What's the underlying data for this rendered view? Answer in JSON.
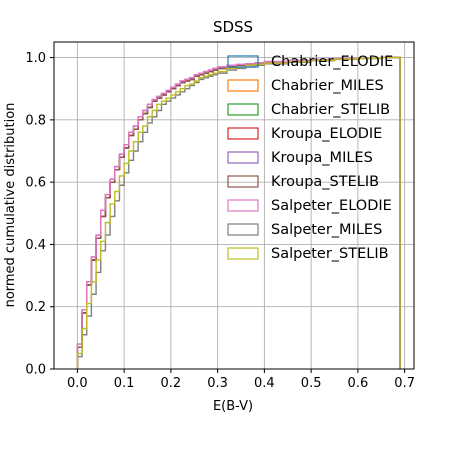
{
  "chart_data": {
    "type": "line",
    "subtype": "cumulative-step-histogram",
    "title": "SDSS",
    "xlabel": "E(B-V)",
    "ylabel": "normed cumulative distribution",
    "xlim": [
      -0.05,
      0.72
    ],
    "ylim": [
      0.0,
      1.05
    ],
    "xticks": [
      0.0,
      0.1,
      0.2,
      0.3,
      0.4,
      0.5,
      0.6,
      0.7
    ],
    "xtick_labels": [
      "0.0",
      "0.1",
      "0.2",
      "0.3",
      "0.4",
      "0.5",
      "0.6",
      "0.7"
    ],
    "yticks": [
      0.0,
      0.2,
      0.4,
      0.6,
      0.8,
      1.0
    ],
    "ytick_labels": [
      "0.0",
      "0.2",
      "0.4",
      "0.6",
      "0.8",
      "1.0"
    ],
    "grid": true,
    "legend_position": "top-right",
    "bin_edges": [
      0.0,
      0.01,
      0.02,
      0.03,
      0.04,
      0.05,
      0.06,
      0.07,
      0.08,
      0.09,
      0.1,
      0.11,
      0.12,
      0.13,
      0.14,
      0.15,
      0.16,
      0.17,
      0.18,
      0.19,
      0.2,
      0.21,
      0.22,
      0.23,
      0.24,
      0.25,
      0.26,
      0.27,
      0.28,
      0.29,
      0.3,
      0.32,
      0.34,
      0.36,
      0.38,
      0.4,
      0.45,
      0.5,
      0.55,
      0.6,
      0.65,
      0.69
    ],
    "series": [
      {
        "name": "Chabrier_ELODIE",
        "color": "#1f77b4",
        "values": [
          0.07,
          0.18,
          0.27,
          0.35,
          0.42,
          0.49,
          0.55,
          0.6,
          0.64,
          0.68,
          0.71,
          0.75,
          0.77,
          0.8,
          0.82,
          0.84,
          0.86,
          0.87,
          0.88,
          0.89,
          0.9,
          0.91,
          0.92,
          0.925,
          0.93,
          0.94,
          0.945,
          0.95,
          0.955,
          0.96,
          0.965,
          0.97,
          0.975,
          0.978,
          0.98,
          0.985,
          0.99,
          0.993,
          0.996,
          0.998,
          1.0
        ]
      },
      {
        "name": "Chabrier_MILES",
        "color": "#ff7f0e",
        "values": [
          0.07,
          0.18,
          0.27,
          0.35,
          0.42,
          0.49,
          0.55,
          0.6,
          0.64,
          0.68,
          0.71,
          0.75,
          0.77,
          0.8,
          0.82,
          0.84,
          0.86,
          0.87,
          0.88,
          0.89,
          0.9,
          0.91,
          0.92,
          0.925,
          0.93,
          0.94,
          0.945,
          0.95,
          0.955,
          0.96,
          0.965,
          0.97,
          0.975,
          0.978,
          0.98,
          0.985,
          0.99,
          0.993,
          0.996,
          0.998,
          1.0
        ]
      },
      {
        "name": "Chabrier_STELIB",
        "color": "#2ca02c",
        "values": [
          0.07,
          0.18,
          0.27,
          0.35,
          0.42,
          0.49,
          0.55,
          0.6,
          0.64,
          0.68,
          0.71,
          0.75,
          0.77,
          0.8,
          0.82,
          0.84,
          0.86,
          0.87,
          0.88,
          0.89,
          0.9,
          0.91,
          0.92,
          0.925,
          0.93,
          0.94,
          0.945,
          0.95,
          0.955,
          0.96,
          0.965,
          0.97,
          0.975,
          0.978,
          0.98,
          0.985,
          0.99,
          0.993,
          0.996,
          0.998,
          1.0
        ]
      },
      {
        "name": "Kroupa_ELODIE",
        "color": "#d62728",
        "values": [
          0.07,
          0.18,
          0.27,
          0.35,
          0.42,
          0.49,
          0.55,
          0.6,
          0.64,
          0.68,
          0.71,
          0.75,
          0.77,
          0.8,
          0.82,
          0.84,
          0.86,
          0.87,
          0.88,
          0.89,
          0.9,
          0.91,
          0.92,
          0.925,
          0.93,
          0.94,
          0.945,
          0.95,
          0.955,
          0.96,
          0.965,
          0.97,
          0.975,
          0.978,
          0.98,
          0.985,
          0.99,
          0.993,
          0.996,
          0.998,
          1.0
        ]
      },
      {
        "name": "Kroupa_MILES",
        "color": "#9467bd",
        "values": [
          0.08,
          0.19,
          0.28,
          0.36,
          0.43,
          0.51,
          0.56,
          0.61,
          0.65,
          0.69,
          0.72,
          0.76,
          0.78,
          0.81,
          0.83,
          0.85,
          0.865,
          0.875,
          0.885,
          0.895,
          0.905,
          0.915,
          0.925,
          0.93,
          0.935,
          0.945,
          0.95,
          0.955,
          0.96,
          0.965,
          0.97,
          0.975,
          0.978,
          0.98,
          0.983,
          0.987,
          0.991,
          0.994,
          0.997,
          0.998,
          1.0
        ]
      },
      {
        "name": "Kroupa_STELIB",
        "color": "#8c564b",
        "values": [
          0.07,
          0.18,
          0.27,
          0.35,
          0.42,
          0.49,
          0.55,
          0.6,
          0.64,
          0.68,
          0.71,
          0.75,
          0.77,
          0.8,
          0.82,
          0.84,
          0.86,
          0.87,
          0.88,
          0.89,
          0.9,
          0.91,
          0.92,
          0.925,
          0.93,
          0.94,
          0.945,
          0.95,
          0.955,
          0.96,
          0.965,
          0.97,
          0.975,
          0.978,
          0.98,
          0.985,
          0.99,
          0.993,
          0.996,
          0.998,
          1.0
        ]
      },
      {
        "name": "Salpeter_ELODIE",
        "color": "#e377c2",
        "values": [
          0.08,
          0.19,
          0.28,
          0.36,
          0.43,
          0.51,
          0.56,
          0.61,
          0.65,
          0.69,
          0.72,
          0.76,
          0.78,
          0.81,
          0.83,
          0.85,
          0.865,
          0.875,
          0.885,
          0.895,
          0.905,
          0.915,
          0.925,
          0.93,
          0.935,
          0.945,
          0.95,
          0.955,
          0.96,
          0.965,
          0.97,
          0.975,
          0.978,
          0.98,
          0.983,
          0.987,
          0.991,
          0.994,
          0.997,
          0.998,
          1.0
        ]
      },
      {
        "name": "Salpeter_MILES",
        "color": "#7f7f7f",
        "values": [
          0.04,
          0.11,
          0.17,
          0.24,
          0.31,
          0.38,
          0.43,
          0.49,
          0.54,
          0.59,
          0.63,
          0.67,
          0.7,
          0.73,
          0.76,
          0.79,
          0.81,
          0.83,
          0.85,
          0.86,
          0.87,
          0.88,
          0.89,
          0.9,
          0.91,
          0.92,
          0.93,
          0.935,
          0.94,
          0.945,
          0.95,
          0.96,
          0.965,
          0.97,
          0.975,
          0.98,
          0.985,
          0.99,
          0.994,
          0.997,
          1.0
        ]
      },
      {
        "name": "Salpeter_STELIB",
        "color": "#bcbd22",
        "values": [
          0.05,
          0.13,
          0.21,
          0.28,
          0.35,
          0.41,
          0.47,
          0.53,
          0.57,
          0.62,
          0.66,
          0.7,
          0.73,
          0.76,
          0.78,
          0.81,
          0.83,
          0.85,
          0.86,
          0.87,
          0.88,
          0.89,
          0.9,
          0.91,
          0.915,
          0.925,
          0.935,
          0.94,
          0.945,
          0.95,
          0.955,
          0.965,
          0.97,
          0.975,
          0.978,
          0.982,
          0.987,
          0.991,
          0.995,
          0.997,
          1.0
        ]
      }
    ]
  }
}
